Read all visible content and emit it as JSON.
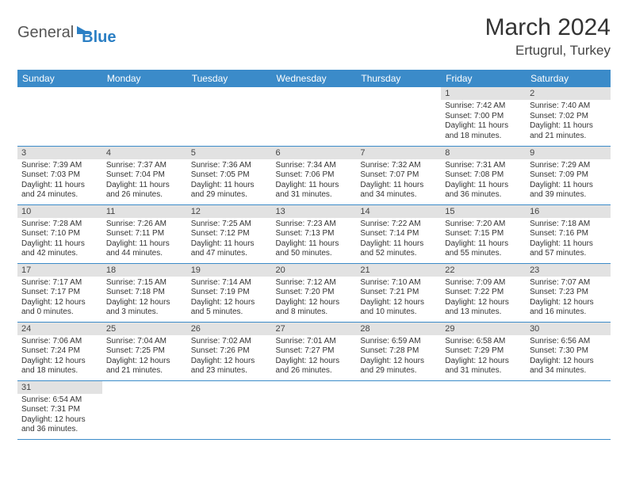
{
  "logo": {
    "word1": "General",
    "word2": "Blue"
  },
  "title": "March 2024",
  "location": "Ertugrul, Turkey",
  "colors": {
    "header_bg": "#3b8bc9",
    "header_fg": "#ffffff",
    "daynum_bg": "#e2e2e2",
    "row_divider": "#3b8bc9",
    "logo_accent": "#2b7fc4"
  },
  "weekdays": [
    "Sunday",
    "Monday",
    "Tuesday",
    "Wednesday",
    "Thursday",
    "Friday",
    "Saturday"
  ],
  "weeks": [
    [
      null,
      null,
      null,
      null,
      null,
      {
        "n": "1",
        "sr": "Sunrise: 7:42 AM",
        "ss": "Sunset: 7:00 PM",
        "d1": "Daylight: 11 hours",
        "d2": "and 18 minutes."
      },
      {
        "n": "2",
        "sr": "Sunrise: 7:40 AM",
        "ss": "Sunset: 7:02 PM",
        "d1": "Daylight: 11 hours",
        "d2": "and 21 minutes."
      }
    ],
    [
      {
        "n": "3",
        "sr": "Sunrise: 7:39 AM",
        "ss": "Sunset: 7:03 PM",
        "d1": "Daylight: 11 hours",
        "d2": "and 24 minutes."
      },
      {
        "n": "4",
        "sr": "Sunrise: 7:37 AM",
        "ss": "Sunset: 7:04 PM",
        "d1": "Daylight: 11 hours",
        "d2": "and 26 minutes."
      },
      {
        "n": "5",
        "sr": "Sunrise: 7:36 AM",
        "ss": "Sunset: 7:05 PM",
        "d1": "Daylight: 11 hours",
        "d2": "and 29 minutes."
      },
      {
        "n": "6",
        "sr": "Sunrise: 7:34 AM",
        "ss": "Sunset: 7:06 PM",
        "d1": "Daylight: 11 hours",
        "d2": "and 31 minutes."
      },
      {
        "n": "7",
        "sr": "Sunrise: 7:32 AM",
        "ss": "Sunset: 7:07 PM",
        "d1": "Daylight: 11 hours",
        "d2": "and 34 minutes."
      },
      {
        "n": "8",
        "sr": "Sunrise: 7:31 AM",
        "ss": "Sunset: 7:08 PM",
        "d1": "Daylight: 11 hours",
        "d2": "and 36 minutes."
      },
      {
        "n": "9",
        "sr": "Sunrise: 7:29 AM",
        "ss": "Sunset: 7:09 PM",
        "d1": "Daylight: 11 hours",
        "d2": "and 39 minutes."
      }
    ],
    [
      {
        "n": "10",
        "sr": "Sunrise: 7:28 AM",
        "ss": "Sunset: 7:10 PM",
        "d1": "Daylight: 11 hours",
        "d2": "and 42 minutes."
      },
      {
        "n": "11",
        "sr": "Sunrise: 7:26 AM",
        "ss": "Sunset: 7:11 PM",
        "d1": "Daylight: 11 hours",
        "d2": "and 44 minutes."
      },
      {
        "n": "12",
        "sr": "Sunrise: 7:25 AM",
        "ss": "Sunset: 7:12 PM",
        "d1": "Daylight: 11 hours",
        "d2": "and 47 minutes."
      },
      {
        "n": "13",
        "sr": "Sunrise: 7:23 AM",
        "ss": "Sunset: 7:13 PM",
        "d1": "Daylight: 11 hours",
        "d2": "and 50 minutes."
      },
      {
        "n": "14",
        "sr": "Sunrise: 7:22 AM",
        "ss": "Sunset: 7:14 PM",
        "d1": "Daylight: 11 hours",
        "d2": "and 52 minutes."
      },
      {
        "n": "15",
        "sr": "Sunrise: 7:20 AM",
        "ss": "Sunset: 7:15 PM",
        "d1": "Daylight: 11 hours",
        "d2": "and 55 minutes."
      },
      {
        "n": "16",
        "sr": "Sunrise: 7:18 AM",
        "ss": "Sunset: 7:16 PM",
        "d1": "Daylight: 11 hours",
        "d2": "and 57 minutes."
      }
    ],
    [
      {
        "n": "17",
        "sr": "Sunrise: 7:17 AM",
        "ss": "Sunset: 7:17 PM",
        "d1": "Daylight: 12 hours",
        "d2": "and 0 minutes."
      },
      {
        "n": "18",
        "sr": "Sunrise: 7:15 AM",
        "ss": "Sunset: 7:18 PM",
        "d1": "Daylight: 12 hours",
        "d2": "and 3 minutes."
      },
      {
        "n": "19",
        "sr": "Sunrise: 7:14 AM",
        "ss": "Sunset: 7:19 PM",
        "d1": "Daylight: 12 hours",
        "d2": "and 5 minutes."
      },
      {
        "n": "20",
        "sr": "Sunrise: 7:12 AM",
        "ss": "Sunset: 7:20 PM",
        "d1": "Daylight: 12 hours",
        "d2": "and 8 minutes."
      },
      {
        "n": "21",
        "sr": "Sunrise: 7:10 AM",
        "ss": "Sunset: 7:21 PM",
        "d1": "Daylight: 12 hours",
        "d2": "and 10 minutes."
      },
      {
        "n": "22",
        "sr": "Sunrise: 7:09 AM",
        "ss": "Sunset: 7:22 PM",
        "d1": "Daylight: 12 hours",
        "d2": "and 13 minutes."
      },
      {
        "n": "23",
        "sr": "Sunrise: 7:07 AM",
        "ss": "Sunset: 7:23 PM",
        "d1": "Daylight: 12 hours",
        "d2": "and 16 minutes."
      }
    ],
    [
      {
        "n": "24",
        "sr": "Sunrise: 7:06 AM",
        "ss": "Sunset: 7:24 PM",
        "d1": "Daylight: 12 hours",
        "d2": "and 18 minutes."
      },
      {
        "n": "25",
        "sr": "Sunrise: 7:04 AM",
        "ss": "Sunset: 7:25 PM",
        "d1": "Daylight: 12 hours",
        "d2": "and 21 minutes."
      },
      {
        "n": "26",
        "sr": "Sunrise: 7:02 AM",
        "ss": "Sunset: 7:26 PM",
        "d1": "Daylight: 12 hours",
        "d2": "and 23 minutes."
      },
      {
        "n": "27",
        "sr": "Sunrise: 7:01 AM",
        "ss": "Sunset: 7:27 PM",
        "d1": "Daylight: 12 hours",
        "d2": "and 26 minutes."
      },
      {
        "n": "28",
        "sr": "Sunrise: 6:59 AM",
        "ss": "Sunset: 7:28 PM",
        "d1": "Daylight: 12 hours",
        "d2": "and 29 minutes."
      },
      {
        "n": "29",
        "sr": "Sunrise: 6:58 AM",
        "ss": "Sunset: 7:29 PM",
        "d1": "Daylight: 12 hours",
        "d2": "and 31 minutes."
      },
      {
        "n": "30",
        "sr": "Sunrise: 6:56 AM",
        "ss": "Sunset: 7:30 PM",
        "d1": "Daylight: 12 hours",
        "d2": "and 34 minutes."
      }
    ],
    [
      {
        "n": "31",
        "sr": "Sunrise: 6:54 AM",
        "ss": "Sunset: 7:31 PM",
        "d1": "Daylight: 12 hours",
        "d2": "and 36 minutes."
      },
      null,
      null,
      null,
      null,
      null,
      null
    ]
  ]
}
